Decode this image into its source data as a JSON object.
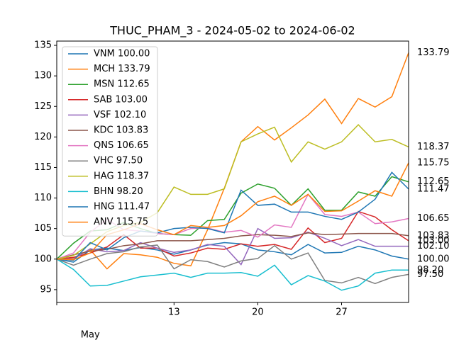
{
  "chart_data": {
    "type": "line",
    "title": "THUC_PHAM_3 - 2024-05-02 to 2024-06-02",
    "categories": [
      null,
      null,
      null,
      null,
      null,
      null,
      null,
      "13",
      null,
      null,
      null,
      null,
      "20",
      null,
      null,
      null,
      null,
      "27",
      null,
      null,
      null,
      null
    ],
    "x_group_label": "May",
    "ylim": [
      92.9,
      135.7
    ],
    "yticks": [
      95,
      100,
      105,
      110,
      115,
      120,
      125,
      130,
      135
    ],
    "legend": "upper left",
    "series": [
      {
        "name": "VNM 100.00",
        "end_label": "100.00",
        "color": "#1f77b4",
        "values": [
          100,
          99.5,
          101.5,
          101.8,
          101.4,
          101.9,
          101.5,
          100.8,
          101.5,
          102.3,
          102.7,
          102.5,
          101.5,
          101.2,
          100.7,
          102.4,
          101.0,
          101.1,
          102.1,
          101.5,
          100.5,
          100.0
        ]
      },
      {
        "name": "MCH 133.79",
        "end_label": "133.79",
        "color": "#ff7f0e",
        "values": [
          100,
          100.2,
          101.5,
          98.4,
          100.9,
          100.7,
          100.3,
          99.3,
          98.9,
          104.8,
          111.6,
          119.2,
          121.7,
          119.5,
          121.5,
          123.6,
          126.2,
          122.2,
          126.3,
          124.9,
          126.6,
          133.79
        ]
      },
      {
        "name": "MSN 112.65",
        "end_label": "112.65",
        "color": "#2ca02c",
        "values": [
          100,
          102.6,
          104.6,
          104.8,
          106.0,
          105.0,
          104.2,
          104.0,
          103.9,
          106.3,
          106.5,
          110.8,
          112.3,
          111.6,
          108.8,
          111.5,
          108.0,
          108.0,
          111.0,
          110.3,
          113.5,
          112.65
        ]
      },
      {
        "name": "SAB 103.00",
        "end_label": "103.00",
        "color": "#d62728",
        "values": [
          100,
          100.3,
          101.0,
          102.0,
          104.0,
          101.8,
          101.8,
          100.5,
          101.0,
          101.8,
          101.6,
          102.5,
          102.1,
          102.4,
          101.6,
          105.1,
          102.7,
          103.4,
          107.8,
          106.9,
          104.8,
          103.0
        ]
      },
      {
        "name": "VSF 102.10",
        "end_label": "102.10",
        "color": "#9467bd",
        "values": [
          100,
          100.0,
          101.7,
          101.2,
          101.4,
          102.7,
          101.8,
          101.1,
          101.5,
          102.4,
          102.1,
          99.1,
          105.0,
          103.4,
          103.5,
          104.4,
          103.4,
          102.2,
          103.2,
          102.1,
          102.1,
          102.1
        ]
      },
      {
        "name": "KDC 103.83",
        "end_label": "103.83",
        "color": "#8c564b",
        "values": [
          100,
          100.7,
          101.3,
          101.6,
          102.2,
          102.5,
          103.0,
          103.0,
          103.0,
          103.2,
          103.4,
          103.8,
          104.0,
          103.9,
          103.7,
          104.3,
          104.0,
          104.1,
          104.2,
          104.2,
          104.2,
          103.83
        ]
      },
      {
        "name": "QNS 106.65",
        "end_label": "106.65",
        "color": "#e377c2",
        "values": [
          100,
          101.0,
          104.4,
          106.5,
          104.8,
          104.6,
          104.2,
          104.0,
          105.0,
          105.1,
          104.4,
          104.7,
          103.6,
          105.6,
          105.2,
          110.6,
          107.3,
          107.0,
          107.7,
          105.8,
          106.1,
          106.65
        ]
      },
      {
        "name": "VHC 97.50",
        "end_label": "97.50",
        "color": "#7f7f7f",
        "values": [
          100,
          99.0,
          100.0,
          100.9,
          101.2,
          102.0,
          102.3,
          98.4,
          99.9,
          99.6,
          98.7,
          99.7,
          100.1,
          102.2,
          100.0,
          101.0,
          96.5,
          96.1,
          97.0,
          96.0,
          97.0,
          97.5
        ]
      },
      {
        "name": "HAG 118.37",
        "end_label": "118.37",
        "color": "#bcbd22",
        "values": [
          100,
          100.6,
          102.5,
          104.5,
          105.5,
          106.0,
          107.6,
          111.8,
          110.6,
          110.6,
          111.5,
          119.2,
          120.5,
          121.6,
          115.9,
          119.2,
          118.0,
          119.2,
          122.0,
          119.2,
          119.6,
          118.37
        ]
      },
      {
        "name": "BHN 98.20",
        "end_label": "98.20",
        "color": "#17becf",
        "values": [
          100,
          98.3,
          95.6,
          95.7,
          96.4,
          97.1,
          97.4,
          97.7,
          97.0,
          97.7,
          97.7,
          97.8,
          97.2,
          99.0,
          95.8,
          97.3,
          96.4,
          94.9,
          95.6,
          97.7,
          98.2,
          98.2
        ]
      },
      {
        "name": "HNG 111.47",
        "end_label": "111.47",
        "color": "#1f77b4",
        "values": [
          100,
          99.8,
          102.7,
          101.5,
          103.5,
          104.6,
          104.3,
          105.0,
          105.2,
          105.0,
          104.3,
          111.3,
          108.8,
          109.0,
          107.7,
          107.7,
          107.0,
          106.5,
          107.7,
          109.8,
          114.2,
          111.47
        ]
      },
      {
        "name": "ANV 115.75",
        "end_label": "115.75",
        "color": "#ff7f0e",
        "values": [
          100,
          99.9,
          101.0,
          104.0,
          104.8,
          105.8,
          104.8,
          104.0,
          105.5,
          105.2,
          105.5,
          107.1,
          109.4,
          110.3,
          108.8,
          110.6,
          107.8,
          107.9,
          109.5,
          111.2,
          110.3,
          115.75
        ]
      }
    ]
  }
}
